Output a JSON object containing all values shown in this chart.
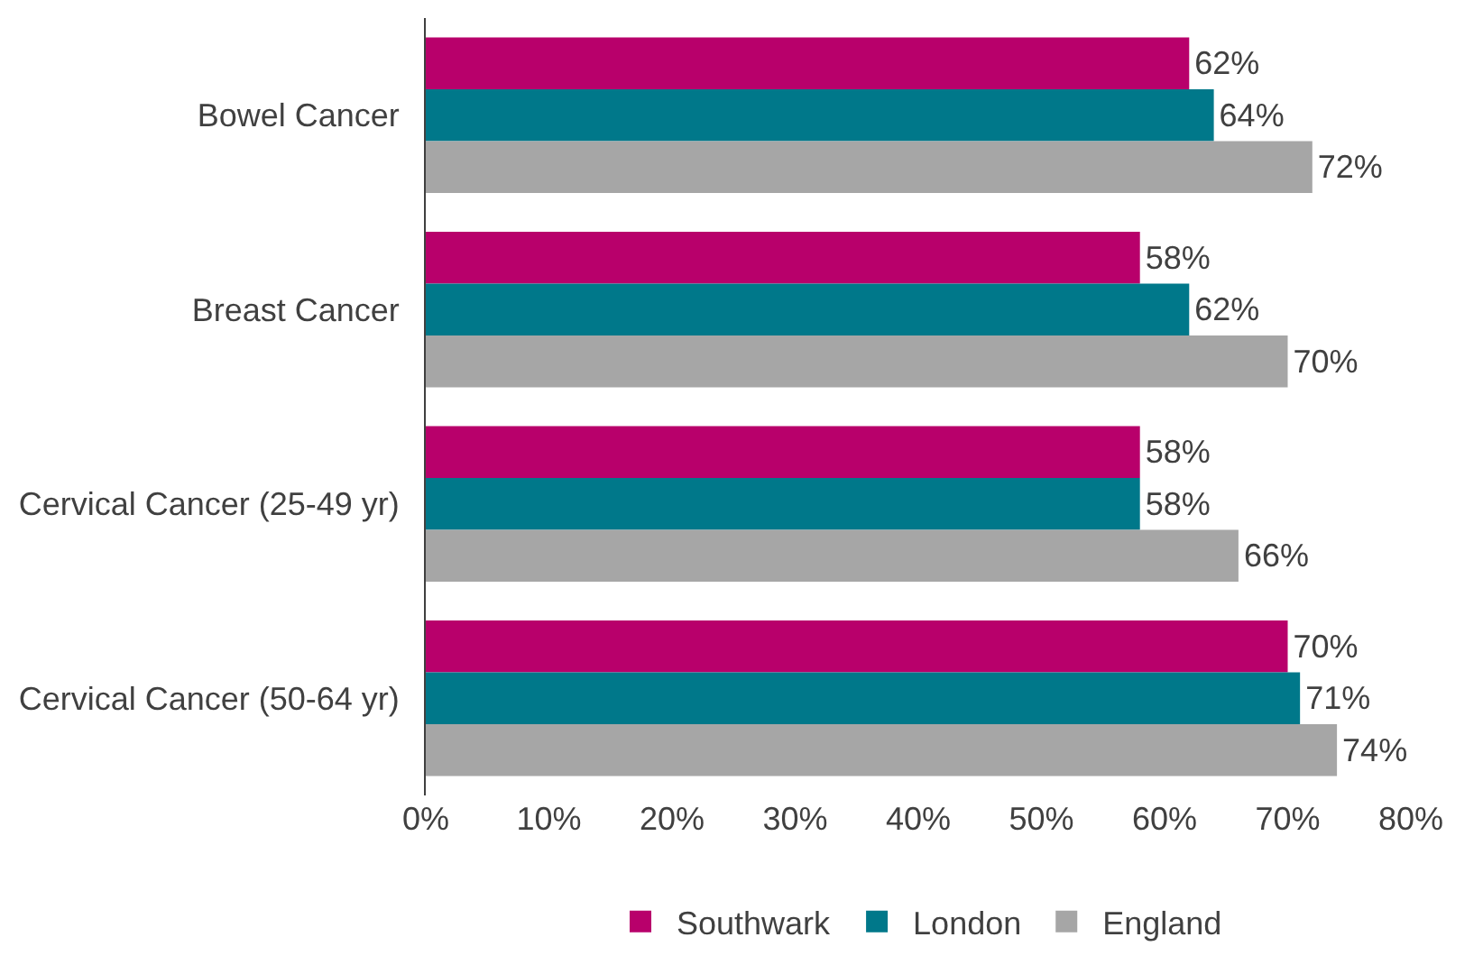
{
  "chart_data": {
    "type": "bar",
    "orientation": "horizontal",
    "categories": [
      "Bowel Cancer",
      "Breast Cancer",
      "Cervical Cancer (25-49 yr)",
      "Cervical Cancer (50-64 yr)"
    ],
    "series": [
      {
        "name": "Southwark",
        "color": "#b8006b",
        "values": [
          62,
          58,
          58,
          70
        ],
        "value_labels": [
          "62%",
          "58%",
          "58%",
          "70%"
        ]
      },
      {
        "name": "London",
        "color": "#00788a",
        "values": [
          64,
          62,
          58,
          71
        ],
        "value_labels": [
          "64%",
          "62%",
          "58%",
          "71%"
        ]
      },
      {
        "name": "England",
        "color": "#a6a6a6",
        "values": [
          72,
          70,
          66,
          74
        ],
        "value_labels": [
          "72%",
          "70%",
          "66%",
          "74%"
        ]
      }
    ],
    "xlim": [
      0,
      80
    ],
    "xticks": [
      {
        "value": 0,
        "label": "0%"
      },
      {
        "value": 10,
        "label": "10%"
      },
      {
        "value": 20,
        "label": "20%"
      },
      {
        "value": 30,
        "label": "30%"
      },
      {
        "value": 40,
        "label": "40%"
      },
      {
        "value": 50,
        "label": "50%"
      },
      {
        "value": 60,
        "label": "60%"
      },
      {
        "value": 70,
        "label": "70%"
      },
      {
        "value": 80,
        "label": "80%"
      }
    ],
    "grid": false,
    "legend": "bottom"
  }
}
